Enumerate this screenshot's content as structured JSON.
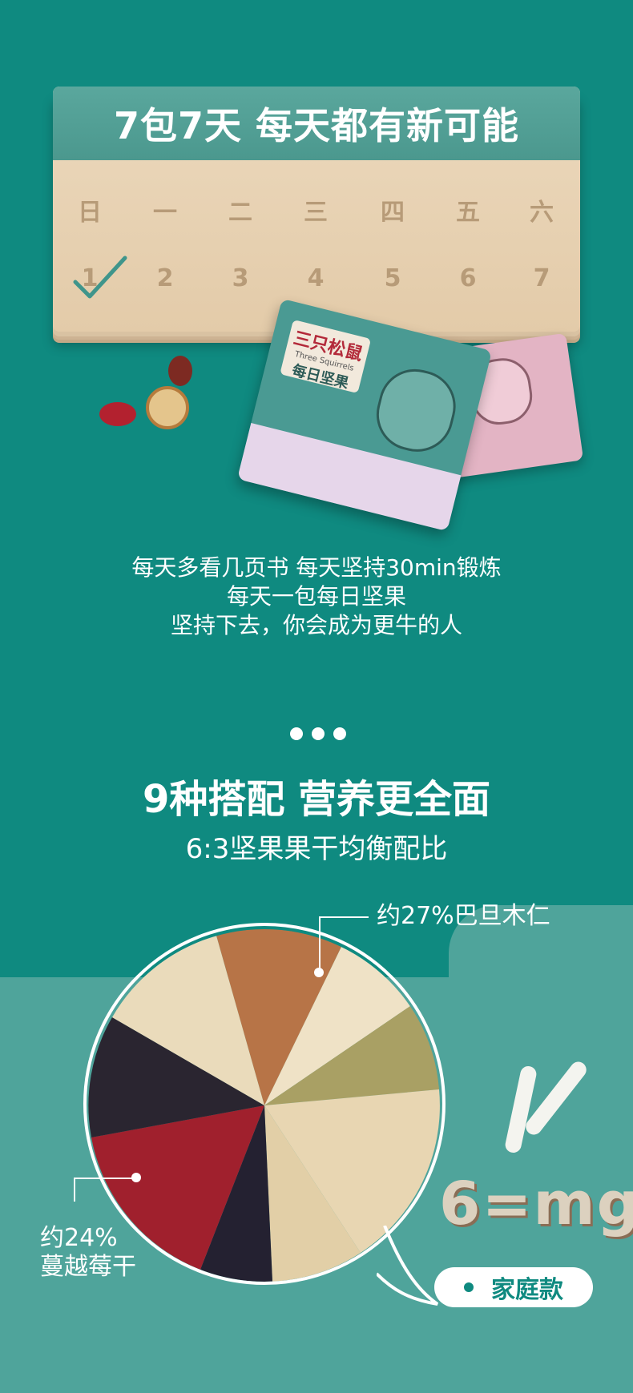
{
  "calendar": {
    "title": "7包7天 每天都有新可能",
    "weekdays": [
      "日",
      "一",
      "二",
      "三",
      "四",
      "五",
      "六"
    ],
    "days": [
      "1",
      "2",
      "3",
      "4",
      "5",
      "6",
      "7"
    ]
  },
  "product": {
    "brand": "三只松鼠",
    "brand_en": "Three Squirrels",
    "name": "每日坚果"
  },
  "slogan": {
    "line1": "每天多看几页书 每天坚持30min锻炼",
    "line2": "每天一包每日坚果",
    "line3": "坚持下去，你会成为更牛的人"
  },
  "section": {
    "title": "9种搭配 营养更全面",
    "subtitle": "6:3坚果果干均衡配比"
  },
  "mix": {
    "almond_label": "约27%巴旦木仁",
    "cranberry_label_1": "约24%",
    "cranberry_label_2": "蔓越莓干",
    "badge_text": "家庭款",
    "lettering": "6=mg"
  },
  "colors": {
    "background": "#0f8a80",
    "band": "#4fa49b",
    "calendar_header": "#4b988e",
    "calendar_paper": "#e3cba9"
  }
}
